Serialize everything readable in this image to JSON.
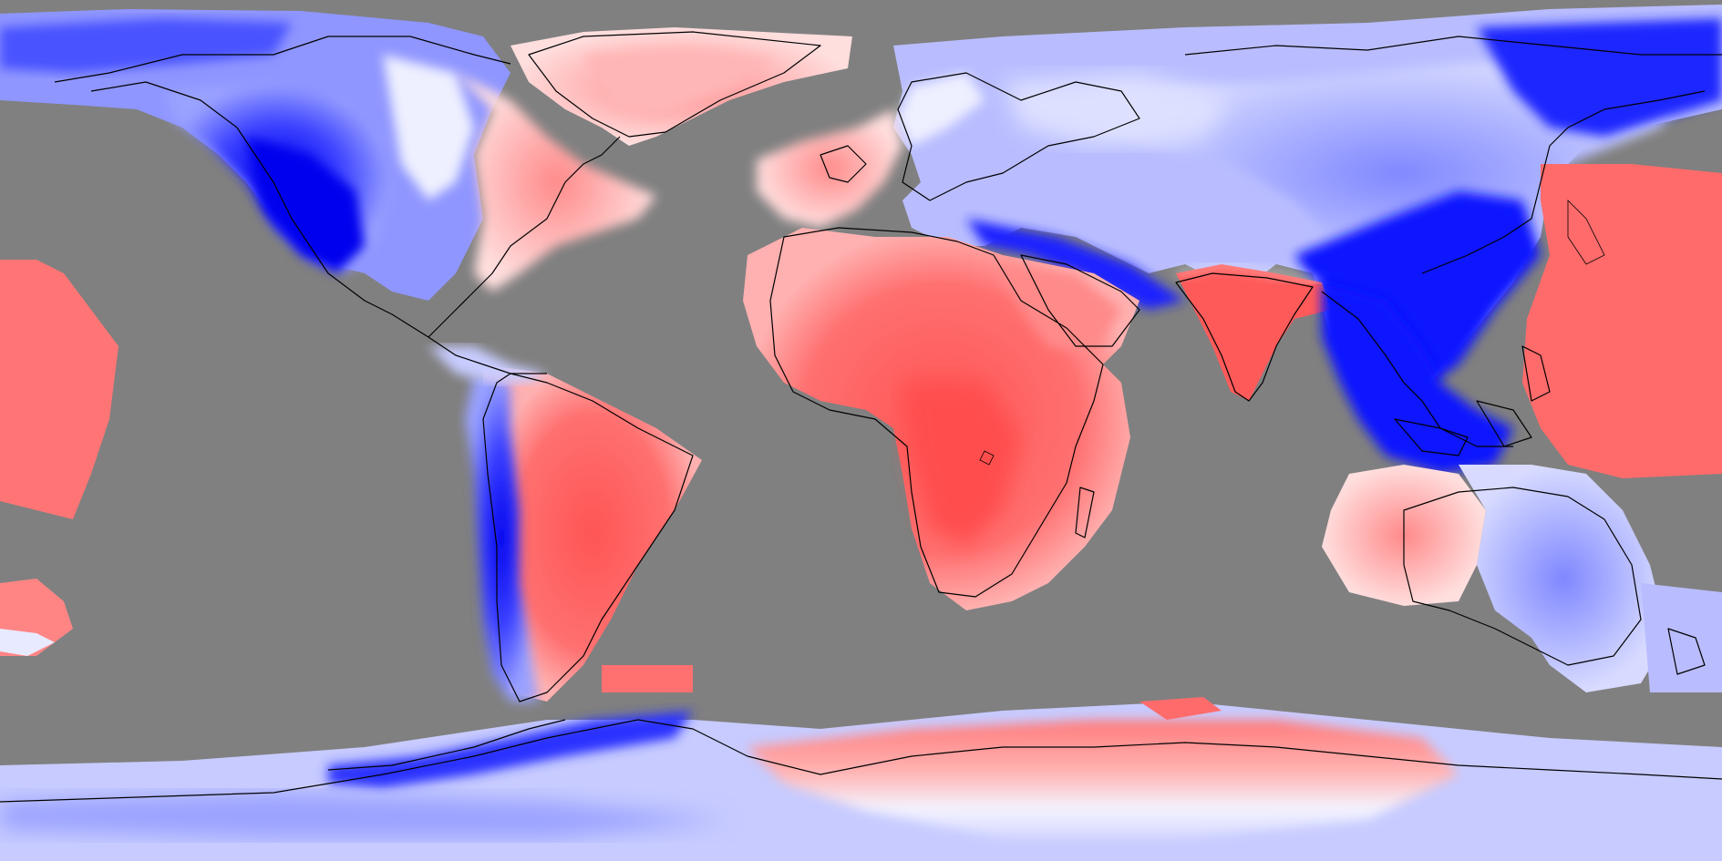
{
  "map": {
    "projection": "equirectangular",
    "background_color": "#808080",
    "colors": {
      "strong_negative": "#0000ff",
      "negative": "#6f7cff",
      "weak_negative": "#c8ccff",
      "neutral": "#ffffff",
      "weak_positive": "#ffc8c8",
      "positive": "#ff8080",
      "strong_positive": "#ff5c5c",
      "missing": "#808080",
      "coastline": "#000000"
    },
    "regions": [
      {
        "name": "north-america",
        "sign": "negative"
      },
      {
        "name": "greenland",
        "sign": "positive"
      },
      {
        "name": "eastern-north-america",
        "sign": "positive"
      },
      {
        "name": "europe-asia",
        "sign": "negative"
      },
      {
        "name": "northern-atlantic-coast",
        "sign": "positive"
      },
      {
        "name": "africa",
        "sign": "positive"
      },
      {
        "name": "india",
        "sign": "positive"
      },
      {
        "name": "southeast-asia",
        "sign": "negative"
      },
      {
        "name": "south-america",
        "sign": "positive"
      },
      {
        "name": "andes",
        "sign": "negative"
      },
      {
        "name": "australia-west",
        "sign": "positive"
      },
      {
        "name": "australia-east",
        "sign": "negative"
      },
      {
        "name": "pacific-west",
        "sign": "positive"
      },
      {
        "name": "pacific-east",
        "sign": "positive"
      },
      {
        "name": "antarctica-west",
        "sign": "negative"
      },
      {
        "name": "antarctica-east",
        "sign": "positive"
      },
      {
        "name": "antarctic-coast",
        "sign": "negative"
      }
    ]
  }
}
